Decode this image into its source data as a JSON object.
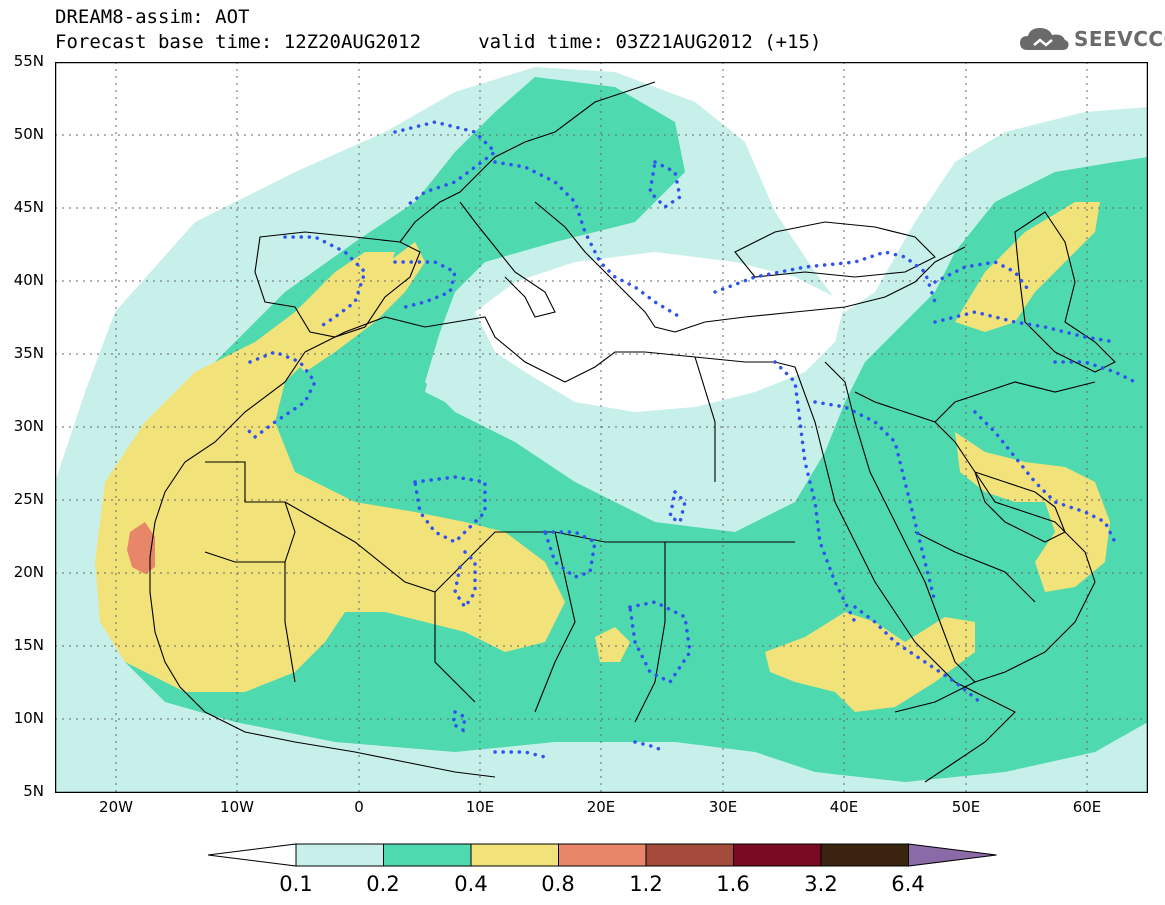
{
  "title": {
    "line1": "DREAM8-assim: AOT",
    "line2": "Forecast base time: 12Z20AUG2012     valid time: 03Z21AUG2012 (+15)"
  },
  "logo": {
    "text": "SEEVCCC",
    "icon": "cloud-icon"
  },
  "map": {
    "lon_range": [
      -25,
      65
    ],
    "lat_range": [
      5,
      55
    ],
    "lat_labels": [
      "55N",
      "50N",
      "45N",
      "40N",
      "35N",
      "30N",
      "25N",
      "20N",
      "15N",
      "10N",
      "5N"
    ],
    "lon_labels": [
      "20W",
      "10W",
      "0",
      "10E",
      "20E",
      "30E",
      "40E",
      "50E",
      "60E"
    ],
    "grid": true,
    "colors": {
      "c01": "#c8f0ea",
      "c02": "#4fd9ae",
      "c04": "#f2e27a",
      "c08": "#e8866a",
      "dotted_contour": "#2f52f0",
      "coast": "#000000"
    }
  },
  "colorbar": {
    "levels": [
      "0.1",
      "0.2",
      "0.4",
      "0.8",
      "1.2",
      "1.6",
      "3.2",
      "6.4"
    ],
    "colors": [
      "#c8f0ea",
      "#4fd9ae",
      "#f2e27a",
      "#e8866a",
      "#a34a3a",
      "#7a0a24",
      "#3a2410",
      "#8b6aa8"
    ],
    "under_color": "#ffffff",
    "over_color": "#8b6aa8"
  }
}
